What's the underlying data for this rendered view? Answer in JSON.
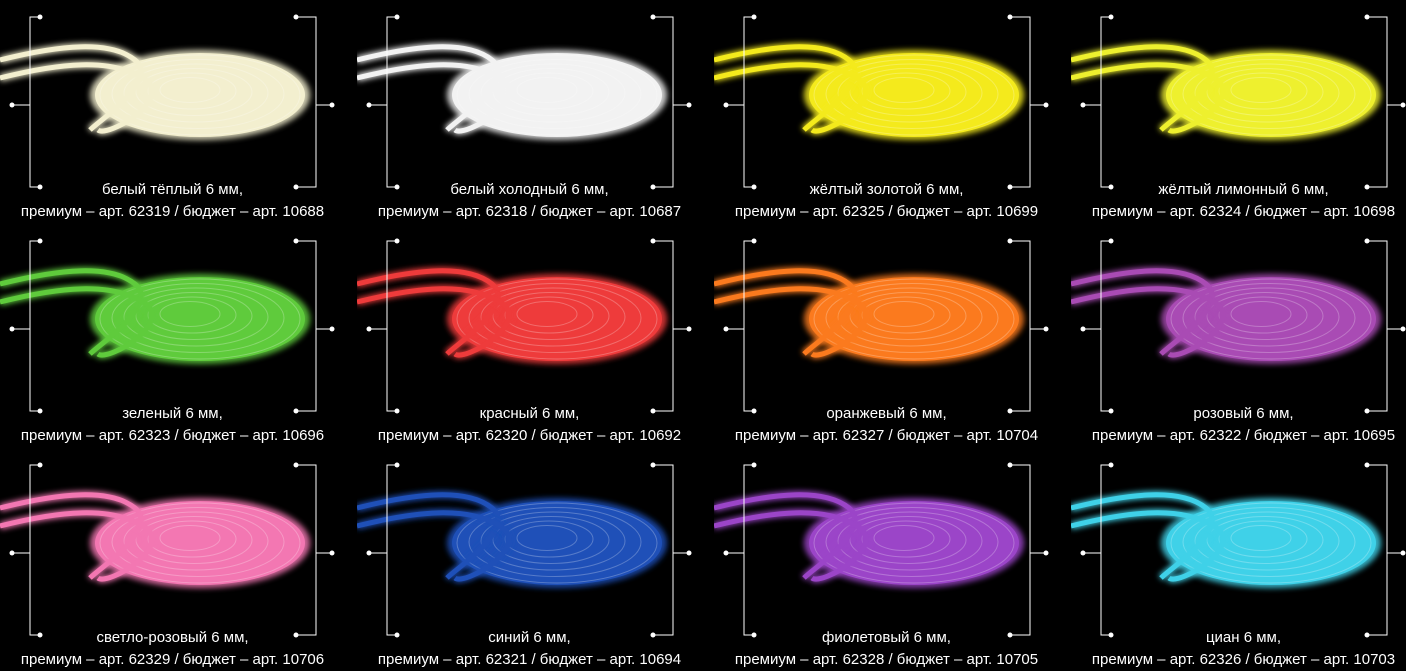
{
  "items": [
    {
      "name": "белый тёплый 6 мм,",
      "article": "премиум – арт. 62319 / бюджет – арт. 10688",
      "color": "#f3efcf"
    },
    {
      "name": "белый холодный 6 мм,",
      "article": "премиум – арт. 62318 / бюджет – арт. 10687",
      "color": "#f2f2f2"
    },
    {
      "name": "жёлтый золотой 6 мм,",
      "article": "премиум – арт. 62325 / бюджет – арт. 10699",
      "color": "#f4ea1c"
    },
    {
      "name": "жёлтый лимонный 6 мм,",
      "article": "премиум – арт. 62324 / бюджет – арт. 10698",
      "color": "#eef02e"
    },
    {
      "name": "зеленый 6 мм,",
      "article": "премиум – арт. 62323 / бюджет – арт. 10696",
      "color": "#5fcb3c"
    },
    {
      "name": "красный 6 мм,",
      "article": "премиум – арт. 62320 / бюджет – арт. 10692",
      "color": "#ee3b3b"
    },
    {
      "name": "оранжевый 6 мм,",
      "article": "премиум – арт. 62327 / бюджет – арт. 10704",
      "color": "#fb7a1e"
    },
    {
      "name": "розовый 6 мм,",
      "article": "премиум – арт. 62322 / бюджет – арт. 10695",
      "color": "#a94bb4"
    },
    {
      "name": "светло-розовый 6 мм,",
      "article": "премиум – арт. 62329 / бюджет – арт. 10706",
      "color": "#f377b2"
    },
    {
      "name": "синий 6 мм,",
      "article": "премиум – арт. 62321 / бюджет  – арт. 10694",
      "color": "#1f50b8"
    },
    {
      "name": "фиолетовый 6 мм,",
      "article": "премиум – арт. 62328 / бюджет – арт. 10705",
      "color": "#9b45c8"
    },
    {
      "name": "циан 6 мм,",
      "article": "премиум – арт. 62326 / бюджет – арт. 10703",
      "color": "#3fd1e8"
    }
  ]
}
